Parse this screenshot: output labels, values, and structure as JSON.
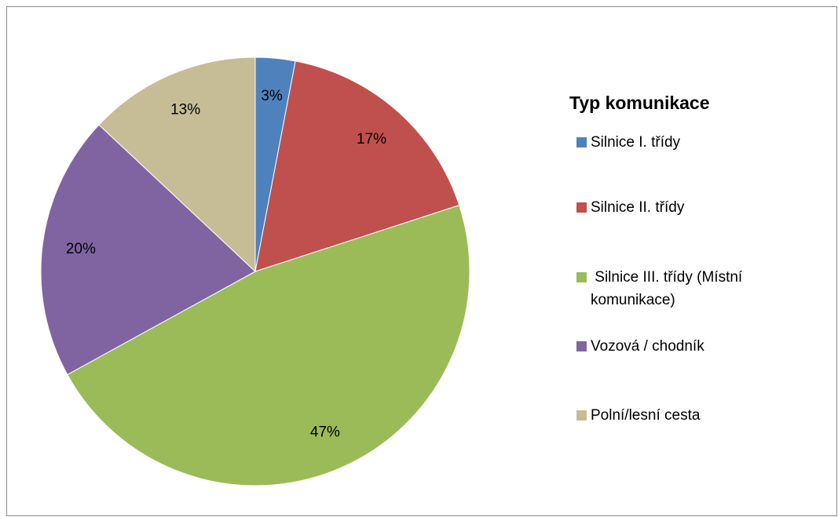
{
  "chart_data": {
    "type": "pie",
    "legend_title": "Typ komunikace",
    "categories": [
      "Silnice I. třídy",
      "Silnice II. třídy",
      " Silnice III. třídy (Místní komunikace)",
      "Vozová / chodník",
      "Polní/lesní cesta"
    ],
    "values": [
      3,
      17,
      47,
      20,
      13
    ],
    "value_labels": [
      "3%",
      "17%",
      "47%",
      "20%",
      "13%"
    ],
    "colors": [
      "#4f81bd",
      "#c0504d",
      "#9bbb59",
      "#8064a2",
      "#c6bd97"
    ],
    "legend": "right"
  }
}
